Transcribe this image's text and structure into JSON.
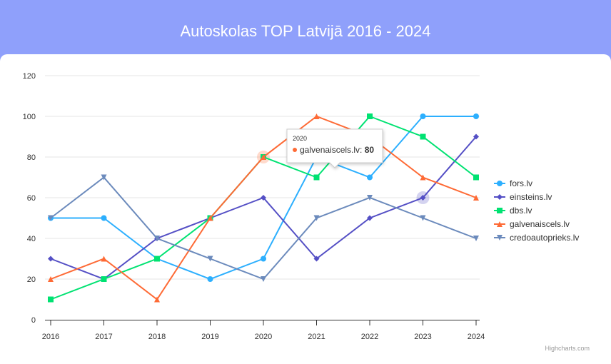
{
  "chart_data": {
    "type": "line",
    "title": "Autoskolas TOP Latvijā 2016 - 2024",
    "categories": [
      "2016",
      "2017",
      "2018",
      "2019",
      "2020",
      "2021",
      "2022",
      "2023",
      "2024"
    ],
    "ylim": [
      0,
      120
    ],
    "yticks": [
      0,
      20,
      40,
      60,
      80,
      100,
      120
    ],
    "grid": true,
    "legend_placement": "right",
    "series": [
      {
        "name": "fors.lv",
        "color": "#2caffe",
        "marker": "circle",
        "values": [
          50,
          50,
          30,
          20,
          30,
          80,
          70,
          100,
          100
        ]
      },
      {
        "name": "einsteins.lv",
        "color": "#544fc5",
        "marker": "diamond",
        "values": [
          30,
          20,
          40,
          50,
          60,
          30,
          50,
          60,
          90
        ]
      },
      {
        "name": "dbs.lv",
        "color": "#00e272",
        "marker": "square",
        "values": [
          10,
          20,
          30,
          50,
          80,
          70,
          100,
          90,
          70
        ]
      },
      {
        "name": "galvenaiscels.lv",
        "color": "#fe6a35",
        "marker": "triangle",
        "values": [
          20,
          30,
          10,
          50,
          80,
          100,
          90,
          70,
          60
        ]
      },
      {
        "name": "credoautoprieks.lv",
        "color": "#6b8abc",
        "marker": "triangle-down",
        "values": [
          50,
          70,
          40,
          30,
          20,
          50,
          60,
          50,
          40
        ]
      }
    ],
    "tooltip": {
      "header": "2020",
      "series": "galvenaiscels.lv",
      "value": "80"
    }
  },
  "credits": "Highcharts.com"
}
